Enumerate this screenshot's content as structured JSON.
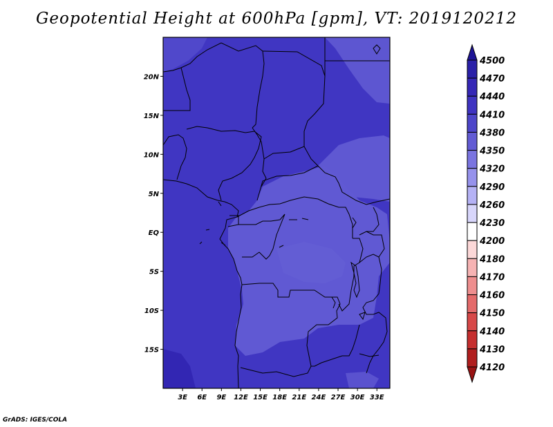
{
  "title": "Geopotential Height at 600hPa [gpm], VT: 2019120212",
  "credit": "GrADS: IGES/COLA",
  "map": {
    "lon_ticks": [
      "3E",
      "6E",
      "9E",
      "12E",
      "15E",
      "18E",
      "21E",
      "24E",
      "27E",
      "30E",
      "33E"
    ],
    "lat_ticks": [
      "20N",
      "15N",
      "10N",
      "5N",
      "EQ",
      "5S",
      "10S",
      "15S"
    ],
    "lon_range": [
      0,
      35
    ],
    "lat_range": [
      -20,
      25
    ]
  },
  "colorbar": {
    "levels": [
      "4500",
      "4470",
      "4440",
      "4410",
      "4380",
      "4350",
      "4320",
      "4290",
      "4260",
      "4230",
      "4200",
      "4180",
      "4170",
      "4160",
      "4150",
      "4140",
      "4130",
      "4120"
    ],
    "colors": [
      "#1e1496",
      "#2a20a8",
      "#3527b6",
      "#3f33c1",
      "#4d45c9",
      "#625bd4",
      "#7a74e0",
      "#9692ec",
      "#b5b2f5",
      "#d8d6fb",
      "#ffffff",
      "#fcd8d8",
      "#f6b3b3",
      "#ee8e8e",
      "#e46a6a",
      "#d74848",
      "#c52e2e",
      "#b01e1e",
      "#991313"
    ]
  }
}
